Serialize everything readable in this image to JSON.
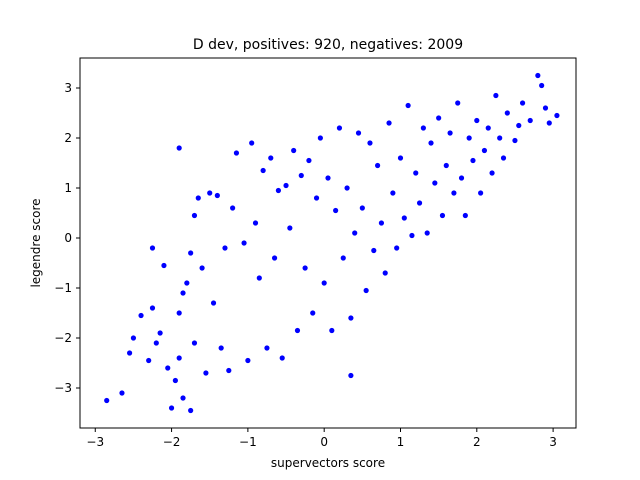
{
  "chart_data": {
    "type": "scatter",
    "title": "D dev, positives: 920, negatives: 2009",
    "xlabel": "supervectors score",
    "ylabel": "legendre score",
    "xlim": [
      -3.2,
      3.3
    ],
    "ylim": [
      -3.8,
      3.6
    ],
    "xticks": [
      -3,
      -2,
      -1,
      0,
      1,
      2,
      3
    ],
    "yticks": [
      -3,
      -2,
      -1,
      0,
      1,
      2,
      3
    ],
    "grid": false,
    "legend": "none",
    "marker_color": "#0000ff",
    "series": [
      {
        "values": [
          [
            -2.85,
            -3.25
          ],
          [
            -2.65,
            -3.1
          ],
          [
            -2.55,
            -2.3
          ],
          [
            -2.5,
            -2.0
          ],
          [
            -2.4,
            -1.55
          ],
          [
            -2.3,
            -2.45
          ],
          [
            -2.25,
            -1.4
          ],
          [
            -2.25,
            -0.2
          ],
          [
            -2.2,
            -2.1
          ],
          [
            -2.15,
            -1.9
          ],
          [
            -2.1,
            -0.55
          ],
          [
            -2.05,
            -2.6
          ],
          [
            -2.0,
            -3.4
          ],
          [
            -1.95,
            -2.85
          ],
          [
            -1.9,
            -2.4
          ],
          [
            -1.9,
            -1.5
          ],
          [
            -1.85,
            -1.1
          ],
          [
            -1.8,
            -0.9
          ],
          [
            -1.9,
            1.8
          ],
          [
            -1.85,
            -3.2
          ],
          [
            -1.75,
            -3.45
          ],
          [
            -1.75,
            -0.3
          ],
          [
            -1.7,
            -2.1
          ],
          [
            -1.7,
            0.45
          ],
          [
            -1.65,
            0.8
          ],
          [
            -1.6,
            -0.6
          ],
          [
            -1.55,
            -2.7
          ],
          [
            -1.5,
            0.9
          ],
          [
            -1.45,
            -1.3
          ],
          [
            -1.4,
            0.85
          ],
          [
            -1.35,
            -2.2
          ],
          [
            -1.3,
            -0.2
          ],
          [
            -1.25,
            -2.65
          ],
          [
            -1.2,
            0.6
          ],
          [
            -1.15,
            1.7
          ],
          [
            -1.05,
            -0.1
          ],
          [
            -1.0,
            -2.45
          ],
          [
            -0.95,
            1.9
          ],
          [
            -0.9,
            0.3
          ],
          [
            -0.85,
            -0.8
          ],
          [
            -0.8,
            1.35
          ],
          [
            -0.75,
            -2.2
          ],
          [
            -0.7,
            1.6
          ],
          [
            -0.65,
            -0.4
          ],
          [
            -0.6,
            0.95
          ],
          [
            -0.55,
            -2.4
          ],
          [
            -0.5,
            1.05
          ],
          [
            -0.45,
            0.2
          ],
          [
            -0.4,
            1.75
          ],
          [
            -0.35,
            -1.85
          ],
          [
            -0.3,
            1.25
          ],
          [
            -0.25,
            -0.6
          ],
          [
            -0.2,
            1.55
          ],
          [
            -0.15,
            -1.5
          ],
          [
            -0.1,
            0.8
          ],
          [
            -0.05,
            2.0
          ],
          [
            0.0,
            -0.9
          ],
          [
            0.05,
            1.2
          ],
          [
            0.1,
            -1.85
          ],
          [
            0.15,
            0.55
          ],
          [
            0.2,
            2.2
          ],
          [
            0.25,
            -0.4
          ],
          [
            0.3,
            1.0
          ],
          [
            0.35,
            -1.6
          ],
          [
            0.35,
            -2.75
          ],
          [
            0.4,
            0.1
          ],
          [
            0.45,
            2.1
          ],
          [
            0.5,
            0.6
          ],
          [
            0.55,
            -1.05
          ],
          [
            0.6,
            1.9
          ],
          [
            0.65,
            -0.25
          ],
          [
            0.7,
            1.45
          ],
          [
            0.75,
            0.3
          ],
          [
            0.8,
            -0.7
          ],
          [
            0.85,
            2.3
          ],
          [
            0.9,
            0.9
          ],
          [
            0.95,
            -0.2
          ],
          [
            1.0,
            1.6
          ],
          [
            1.05,
            0.4
          ],
          [
            1.1,
            2.65
          ],
          [
            1.15,
            0.05
          ],
          [
            1.2,
            1.3
          ],
          [
            1.25,
            0.7
          ],
          [
            1.3,
            2.2
          ],
          [
            1.35,
            0.1
          ],
          [
            1.4,
            1.9
          ],
          [
            1.45,
            1.1
          ],
          [
            1.5,
            2.4
          ],
          [
            1.55,
            0.45
          ],
          [
            1.6,
            1.45
          ],
          [
            1.65,
            2.1
          ],
          [
            1.7,
            0.9
          ],
          [
            1.75,
            2.7
          ],
          [
            1.8,
            1.2
          ],
          [
            1.85,
            0.45
          ],
          [
            1.9,
            2.0
          ],
          [
            1.95,
            1.55
          ],
          [
            2.0,
            2.35
          ],
          [
            2.05,
            0.9
          ],
          [
            2.1,
            1.75
          ],
          [
            2.15,
            2.2
          ],
          [
            2.2,
            1.3
          ],
          [
            2.25,
            2.85
          ],
          [
            2.3,
            2.0
          ],
          [
            2.35,
            1.6
          ],
          [
            2.4,
            2.5
          ],
          [
            2.5,
            1.95
          ],
          [
            2.55,
            2.25
          ],
          [
            2.6,
            2.7
          ],
          [
            2.7,
            2.35
          ],
          [
            2.8,
            3.25
          ],
          [
            2.9,
            2.6
          ],
          [
            2.95,
            2.3
          ],
          [
            3.05,
            2.45
          ],
          [
            2.85,
            3.05
          ]
        ]
      }
    ]
  }
}
